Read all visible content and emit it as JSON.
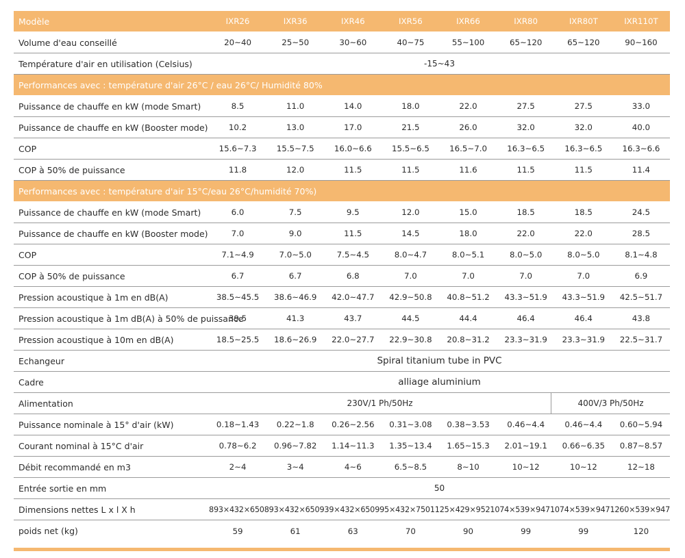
{
  "header": {
    "label": "Modèle",
    "models": [
      "IXR26",
      "IXR36",
      "IXR46",
      "IXR56",
      "IXR66",
      "IXR80",
      "IXR80T",
      "IXR110T"
    ]
  },
  "rows": {
    "volume": {
      "label": "Volume d'eau conseillé",
      "values": [
        "20~40",
        "25~50",
        "30~60",
        "40~75",
        "55~100",
        "65~120",
        "65~120",
        "90~160"
      ]
    },
    "temp_air": {
      "label": "Température d'air en utilisation (Celsius)",
      "value": "-15~43"
    },
    "section1": {
      "label": "Performances avec : température d'air 26°C / eau 26°C/ Humidité 80%"
    },
    "s1_smart": {
      "label": "Puissance de chauffe en kW (mode Smart)",
      "values": [
        "8.5",
        "11.0",
        "14.0",
        "18.0",
        "22.0",
        "27.5",
        "27.5",
        "33.0"
      ]
    },
    "s1_booster": {
      "label": "Puissance de chauffe en kW (Booster mode)",
      "values": [
        "10.2",
        "13.0",
        "17.0",
        "21.5",
        "26.0",
        "32.0",
        "32.0",
        "40.0"
      ]
    },
    "s1_cop": {
      "label": "COP",
      "values": [
        "15.6~7.3",
        "15.5~7.5",
        "16.0~6.6",
        "15.5~6.5",
        "16.5~7.0",
        "16.3~6.5",
        "16.3~6.5",
        "16.3~6.6"
      ]
    },
    "s1_cop50": {
      "label": "COP à 50% de puissance",
      "values": [
        "11.8",
        "12.0",
        "11.5",
        "11.5",
        "11.6",
        "11.5",
        "11.5",
        "11.4"
      ]
    },
    "section2": {
      "label": "Performances avec : température d'air 15°C/eau 26°C/humidité 70%)"
    },
    "s2_smart": {
      "label": "Puissance de chauffe en kW (mode Smart)",
      "values": [
        "6.0",
        "7.5",
        "9.5",
        "12.0",
        "15.0",
        "18.5",
        "18.5",
        "24.5"
      ]
    },
    "s2_booster": {
      "label": "Puissance de chauffe en kW (Booster mode)",
      "values": [
        "7.0",
        "9.0",
        "11.5",
        "14.5",
        "18.0",
        "22.0",
        "22.0",
        "28.5"
      ]
    },
    "s2_cop": {
      "label": "COP",
      "values": [
        "7.1~4.9",
        "7.0~5.0",
        "7.5~4.5",
        "8.0~4.7",
        "8.0~5.1",
        "8.0~5.0",
        "8.0~5.0",
        "8.1~4.8"
      ]
    },
    "s2_cop50": {
      "label": "COP à 50% de puissance",
      "values": [
        "6.7",
        "6.7",
        "6.8",
        "7.0",
        "7.0",
        "7.0",
        "7.0",
        "6.9"
      ]
    },
    "sound_1m": {
      "label": "Pression acoustique à 1m en dB(A)",
      "values": [
        "38.5~45.5",
        "38.6~46.9",
        "42.0~47.7",
        "42.9~50.8",
        "40.8~51.2",
        "43.3~51.9",
        "43.3~51.9",
        "42.5~51.7"
      ]
    },
    "sound_1m_50": {
      "label": "Pression acoustique à 1m dB(A) à 50% de puissance",
      "values": [
        "39.5",
        "41.3",
        "43.7",
        "44.5",
        "44.4",
        "46.4",
        "46.4",
        "43.8"
      ]
    },
    "sound_10m": {
      "label": "Pression acoustique à 10m en dB(A)",
      "values": [
        "18.5~25.5",
        "18.6~26.9",
        "22.0~27.7",
        "22.9~30.8",
        "20.8~31.2",
        "23.3~31.9",
        "23.3~31.9",
        "22.5~31.7"
      ]
    },
    "echangeur": {
      "label": "Echangeur",
      "value": "Spiral titanium tube in PVC"
    },
    "cadre": {
      "label": "Cadre",
      "value": "alliage aluminium"
    },
    "alimentation": {
      "label": "Alimentation",
      "value_single": "230V/1 Ph/50Hz",
      "value_three": "400V/3 Ph/50Hz"
    },
    "puissance_nom": {
      "label": "Puissance nominale à 15° d'air (kW)",
      "values": [
        "0.18~1.43",
        "0.22~1.8",
        "0.26~2.56",
        "0.31~3.08",
        "0.38~3.53",
        "0.46~4.4",
        "0.46~4.4",
        "0.60~5.94"
      ]
    },
    "courant_nom": {
      "label": "Courant nominal à 15°C d'air",
      "values": [
        "0.78~6.2",
        "0.96~7.82",
        "1.14~11.3",
        "1.35~13.4",
        "1.65~15.3",
        "2.01~19.1",
        "0.66~6.35",
        "0.87~8.57"
      ]
    },
    "debit": {
      "label": "Débit recommandé en m3",
      "values": [
        "2~4",
        "3~4",
        "4~6",
        "6.5~8.5",
        "8~10",
        "10~12",
        "10~12",
        "12~18"
      ]
    },
    "entree": {
      "label": "Entrée sortie en mm",
      "value": "50"
    },
    "dimensions": {
      "label": "Dimensions nettes L x l X h",
      "values": [
        "893×432×650",
        "893×432×650",
        "939×432×650",
        "995×432×750",
        "1125×429×952",
        "1074×539×947",
        "1074×539×947",
        "1260×539×947"
      ]
    },
    "poids": {
      "label": "poids net (kg)",
      "values": [
        "59",
        "61",
        "63",
        "70",
        "90",
        "99",
        "99",
        "120"
      ]
    }
  },
  "colors": {
    "accent": "#f5b870",
    "text": "#2b2b2b",
    "rule": "#9a9a9a"
  }
}
